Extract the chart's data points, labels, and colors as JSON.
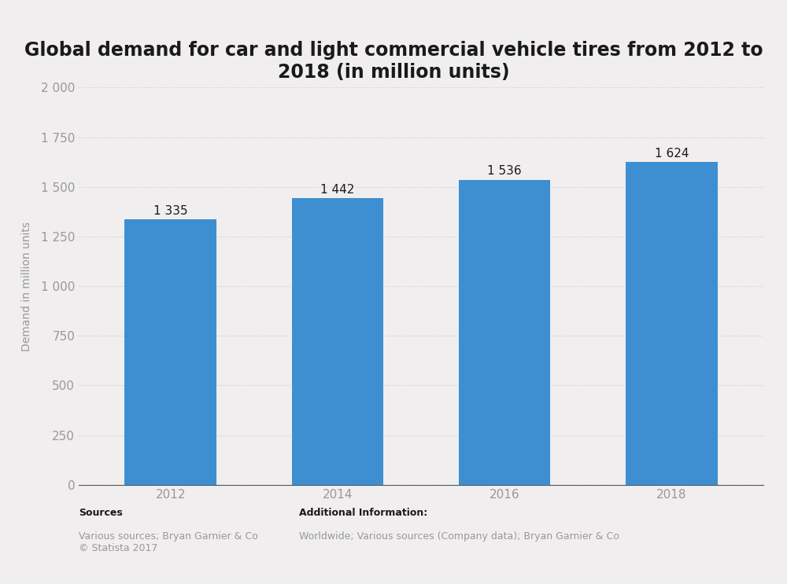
{
  "title": "Global demand for car and light commercial vehicle tires from 2012 to\n2018 (in million units)",
  "categories": [
    "2012",
    "2014",
    "2016",
    "2018"
  ],
  "values": [
    1335,
    1442,
    1536,
    1624
  ],
  "bar_labels": [
    "1 335",
    "1 442",
    "1 536",
    "1 624"
  ],
  "bar_color": "#3d8fd1",
  "ylabel": "Demand in million units",
  "ylim": [
    0,
    2000
  ],
  "yticks": [
    0,
    250,
    500,
    750,
    1000,
    1250,
    1500,
    1750,
    2000
  ],
  "ytick_labels": [
    "0",
    "250",
    "500",
    "750",
    "1 000",
    "1 250",
    "1 500",
    "1 750",
    "2 000"
  ],
  "background_color": "#f0eeee",
  "plot_bg_color": "#f0eeee",
  "title_fontsize": 17,
  "title_color": "#1a1a1a",
  "axis_label_fontsize": 10,
  "tick_label_fontsize": 11,
  "bar_label_fontsize": 11,
  "sources_bold": "Sources",
  "sources_text": "Various sources; Bryan Garnier & Co\n© Statista 2017",
  "additional_bold": "Additional Information:",
  "additional_info_text": "Worldwide; Various sources (Company data); Bryan Garnier & Co",
  "grid_color": "#cccccc",
  "bar_width": 0.55,
  "tick_color": "#999999",
  "spine_color": "#555555"
}
